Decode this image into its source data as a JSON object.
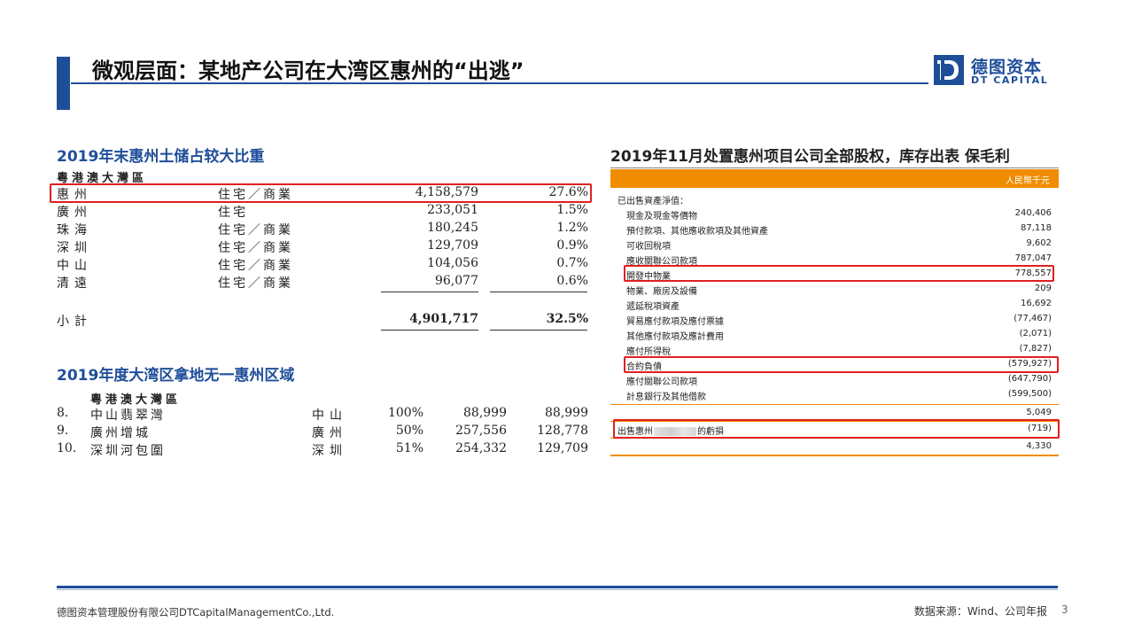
{
  "header": {
    "title": "微观层面：某地产公司在大湾区惠州的“出逃”",
    "logo_cn": "德图资本",
    "logo_en": "DT CAPITAL",
    "brand_color": "#1f4e99"
  },
  "left_top": {
    "section_title": "2019年末惠州土储占较大比重",
    "region_header": "粵港澳大灣區",
    "rows": [
      {
        "city": "惠州",
        "type": "住宅／商業",
        "area": "4,158,579",
        "pct": "27.6%"
      },
      {
        "city": "廣州",
        "type": "住宅",
        "area": "233,051",
        "pct": "1.5%"
      },
      {
        "city": "珠海",
        "type": "住宅／商業",
        "area": "180,245",
        "pct": "1.2%"
      },
      {
        "city": "深圳",
        "type": "住宅／商業",
        "area": "129,709",
        "pct": "0.9%"
      },
      {
        "city": "中山",
        "type": "住宅／商業",
        "area": "104,056",
        "pct": "0.7%"
      },
      {
        "city": "清遠",
        "type": "住宅／商業",
        "area": "96,077",
        "pct": "0.6%"
      }
    ],
    "subtotal": {
      "label": "小計",
      "area": "4,901,717",
      "pct": "32.5%"
    }
  },
  "left_bottom": {
    "section_title": "2019年度大湾区拿地无一惠州区域",
    "region_header": "粵港澳大灣區",
    "rows": [
      {
        "no": "8.",
        "name": "中山翡翠灣",
        "city": "中山",
        "share": "100%",
        "gfa": "88,999",
        "attr": "88,999"
      },
      {
        "no": "9.",
        "name": "廣州增城",
        "city": "廣州",
        "share": "50%",
        "gfa": "257,556",
        "attr": "128,778"
      },
      {
        "no": "10.",
        "name": "深圳河包圍",
        "city": "深圳",
        "share": "51%",
        "gfa": "254,332",
        "attr": "129,709"
      }
    ]
  },
  "right": {
    "section_title": "2019年11月处置惠州项目公司全部股权，库存出表 保毛利",
    "currency_label": "人民幣千元",
    "accent_color": "#f08c00",
    "rows": [
      {
        "label": "已出售資產淨值：",
        "value": ""
      },
      {
        "label": "現金及現金等價物",
        "value": "240,406"
      },
      {
        "label": "預付款項、其他應收款項及其他資產",
        "value": "87,118"
      },
      {
        "label": "可收回稅項",
        "value": "9,602"
      },
      {
        "label": "應收關聯公司款項",
        "value": "787,047"
      },
      {
        "label": "開發中物業",
        "value": "778,557"
      },
      {
        "label": "物業、廠房及設備",
        "value": "209"
      },
      {
        "label": "遞延稅項資產",
        "value": "16,692"
      },
      {
        "label": "貿易應付款項及應付票據",
        "value": "(77,467)"
      },
      {
        "label": "其他應付款項及應計費用",
        "value": "(2,071)"
      },
      {
        "label": "應付所得稅",
        "value": "(7,827)"
      },
      {
        "label": "合約負債",
        "value": "(579,927)"
      },
      {
        "label": "應付關聯公司款項",
        "value": "(647,790)"
      },
      {
        "label": "計息銀行及其他借款",
        "value": "(599,500)"
      }
    ],
    "net_total": "5,049",
    "loss_label_prefix": "出售惠州",
    "loss_label_suffix": "的虧損",
    "loss_value": "(719)",
    "final_total": "4,330"
  },
  "footer": {
    "company": "德图资本管理股份有限公司DTCapitalManagementCo.,Ltd.",
    "source": "数据来源：Wind、公司年报",
    "page": "3"
  }
}
